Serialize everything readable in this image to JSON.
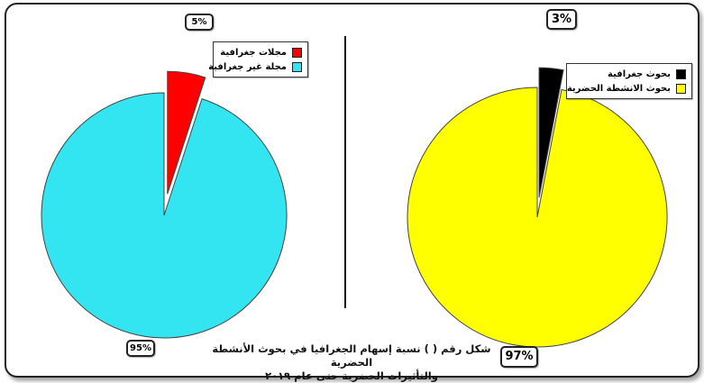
{
  "chart_data": [
    {
      "type": "pie",
      "slices": [
        {
          "name": "مجلات جغرافية",
          "value": 5,
          "color": "#ff0000",
          "label": "5%"
        },
        {
          "name": "مجلة غير جغرافية",
          "value": 95,
          "color": "#33e5f0",
          "label": "95%"
        }
      ],
      "legend": "top-right",
      "exploded": "مجلات جغرافية"
    },
    {
      "type": "pie",
      "slices": [
        {
          "name": "بحوث جغرافية",
          "value": 3,
          "color": "#000000",
          "label": "3%"
        },
        {
          "name": "بحوث الانشطة الحضرية",
          "value": 97,
          "color": "#ffff00",
          "label": "97%"
        }
      ],
      "legend": "top-right",
      "exploded": "بحوث جغرافية"
    }
  ],
  "caption": {
    "line1": "شكل رقم ( ) نسبة إسهام الجغرافيا في بحوث الأنشطة الحضرية",
    "line2": "والتأثيرات الحضرية حتى عام ٢٠١٩"
  }
}
